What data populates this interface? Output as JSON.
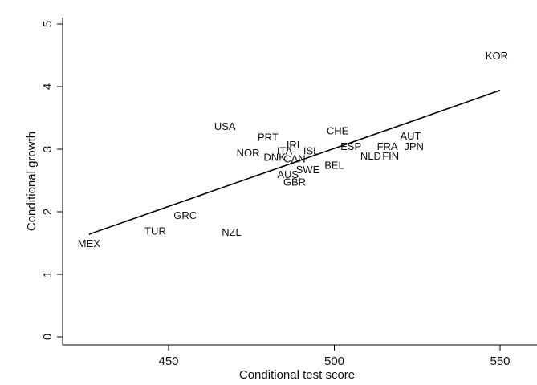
{
  "chart_data": {
    "type": "scatter",
    "xlabel": "Conditional test score",
    "ylabel": "Conditional growth",
    "xlim": [
      420,
      560
    ],
    "ylim": [
      -0.1,
      5.1
    ],
    "xticks": [
      450,
      500,
      550
    ],
    "yticks": [
      0,
      1,
      2,
      3,
      4,
      5
    ],
    "marker": "country-code text",
    "points": [
      {
        "label": "KOR",
        "x": 549,
        "y": 4.5
      },
      {
        "label": "USA",
        "x": 467,
        "y": 3.37
      },
      {
        "label": "CHE",
        "x": 501,
        "y": 3.3
      },
      {
        "label": "PRT",
        "x": 480,
        "y": 3.2
      },
      {
        "label": "AUT",
        "x": 523,
        "y": 3.22
      },
      {
        "label": "IRL",
        "x": 488,
        "y": 3.08
      },
      {
        "label": "ESP",
        "x": 505,
        "y": 3.05
      },
      {
        "label": "FRA",
        "x": 516,
        "y": 3.05
      },
      {
        "label": "JPN",
        "x": 524,
        "y": 3.05
      },
      {
        "label": "ITA",
        "x": 485,
        "y": 2.98
      },
      {
        "label": "ISL",
        "x": 493,
        "y": 2.98
      },
      {
        "label": "NOR",
        "x": 474,
        "y": 2.95
      },
      {
        "label": "DNK",
        "x": 482,
        "y": 2.88
      },
      {
        "label": "CAN",
        "x": 488,
        "y": 2.85
      },
      {
        "label": "NLD",
        "x": 511,
        "y": 2.9
      },
      {
        "label": "FIN",
        "x": 517,
        "y": 2.9
      },
      {
        "label": "BEL",
        "x": 500,
        "y": 2.75
      },
      {
        "label": "SWE",
        "x": 492,
        "y": 2.68
      },
      {
        "label": "AUS",
        "x": 486,
        "y": 2.6
      },
      {
        "label": "GBR",
        "x": 488,
        "y": 2.48
      },
      {
        "label": "GRC",
        "x": 455,
        "y": 1.95
      },
      {
        "label": "TUR",
        "x": 446,
        "y": 1.7
      },
      {
        "label": "NZL",
        "x": 469,
        "y": 1.68
      },
      {
        "label": "MEX",
        "x": 426,
        "y": 1.5
      }
    ],
    "fit_line": {
      "x": [
        426,
        550
      ],
      "y": [
        1.64,
        3.94
      ]
    },
    "grid": false,
    "legend": "none"
  }
}
